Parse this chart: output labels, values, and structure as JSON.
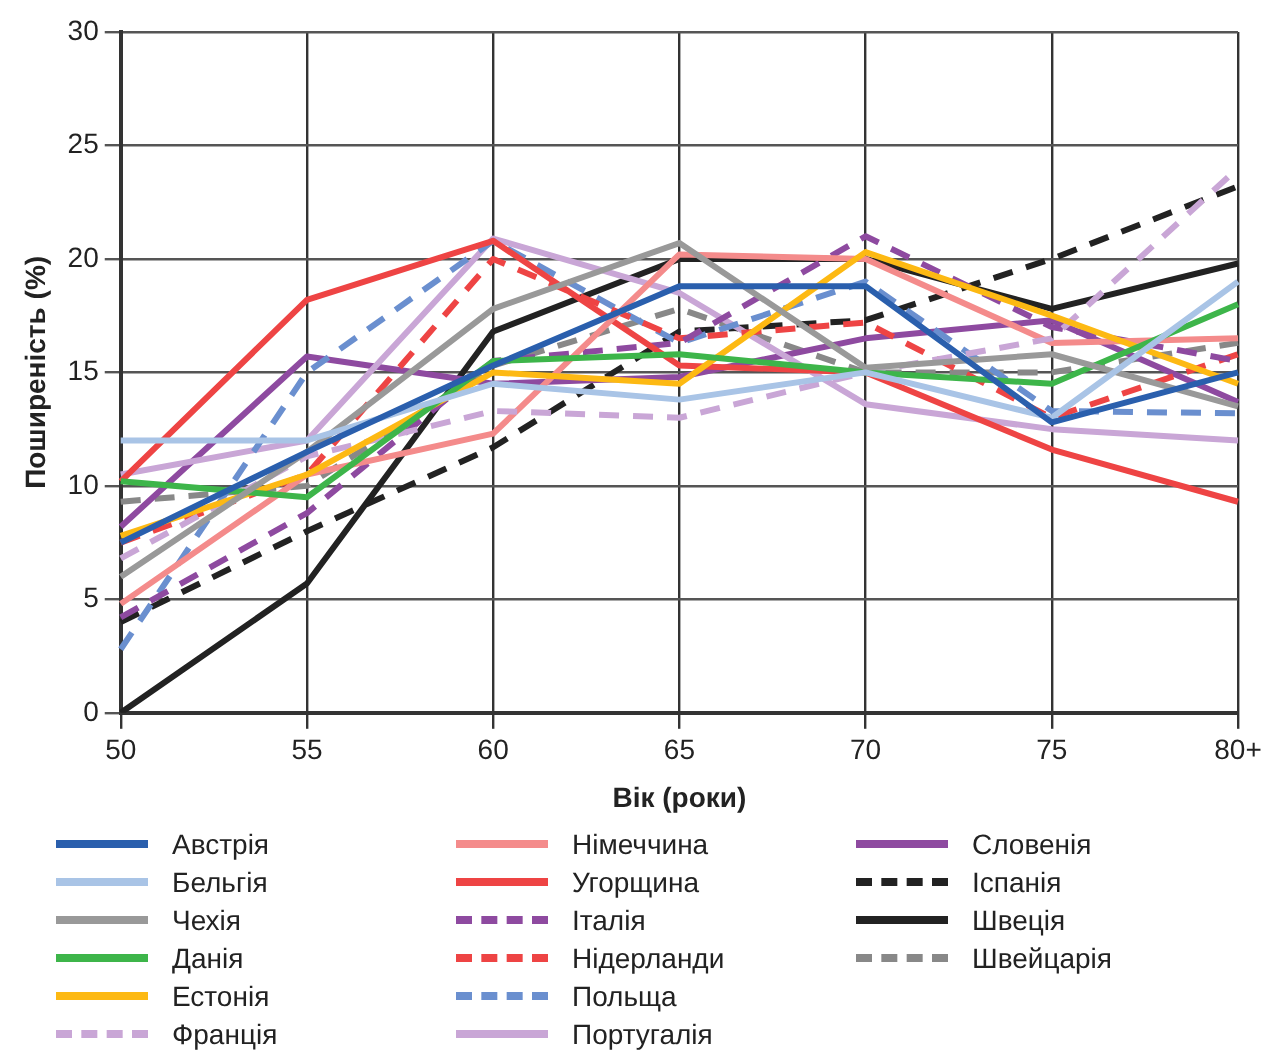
{
  "chart_data": {
    "type": "line",
    "xlabel": "Вік (роки)",
    "ylabel": "Поширеність (%)",
    "categories": [
      "50",
      "55",
      "60",
      "65",
      "70",
      "75",
      "80+"
    ],
    "ylim": [
      0,
      30
    ],
    "yticks": [
      0,
      5,
      10,
      15,
      20,
      25,
      30
    ],
    "grid": true,
    "legend": "bottom",
    "marker": "none",
    "series": [
      {
        "name": "Австрія",
        "color": "#2a5fad",
        "line_style": "solid",
        "values": [
          7.5,
          11.5,
          15.3,
          18.8,
          18.8,
          12.8,
          15.0
        ]
      },
      {
        "name": "Бельгія",
        "color": "#a9c4e6",
        "line_style": "solid",
        "values": [
          12.0,
          12.0,
          14.5,
          13.8,
          15.0,
          13.0,
          19.0
        ]
      },
      {
        "name": "Чехія",
        "color": "#999999",
        "line_style": "solid",
        "values": [
          6.0,
          11.5,
          17.8,
          20.7,
          15.2,
          15.8,
          13.5
        ]
      },
      {
        "name": "Данія",
        "color": "#3db54a",
        "line_style": "solid",
        "values": [
          10.2,
          9.5,
          15.5,
          15.8,
          15.0,
          14.5,
          18.0
        ]
      },
      {
        "name": "Естонія",
        "color": "#fdb913",
        "line_style": "solid",
        "values": [
          7.8,
          10.5,
          15.0,
          14.5,
          20.3,
          17.5,
          14.5
        ]
      },
      {
        "name": "Франція",
        "color": "#c9a6d6",
        "line_style": "dashed",
        "values": [
          6.8,
          11.3,
          13.3,
          13.0,
          15.0,
          16.5,
          24.0
        ]
      },
      {
        "name": "Німеччина",
        "color": "#f48b8b",
        "line_style": "solid",
        "values": [
          4.8,
          10.5,
          12.3,
          20.2,
          20.0,
          16.3,
          16.5
        ]
      },
      {
        "name": "Угорщина",
        "color": "#ee4444",
        "line_style": "solid",
        "values": [
          10.2,
          18.2,
          20.8,
          15.3,
          15.0,
          11.6,
          9.3
        ]
      },
      {
        "name": "Італія",
        "color": "#8e4aa0",
        "line_style": "dashed",
        "values": [
          4.2,
          8.8,
          15.5,
          16.3,
          21.0,
          17.0,
          15.5
        ]
      },
      {
        "name": "Нідерланди",
        "color": "#ee4444",
        "line_style": "dashed",
        "values": [
          7.5,
          10.5,
          20.0,
          16.5,
          17.2,
          13.0,
          15.8
        ]
      },
      {
        "name": "Польща",
        "color": "#6a8fcf",
        "line_style": "dashed",
        "values": [
          2.8,
          15.0,
          20.8,
          16.3,
          19.0,
          13.3,
          13.2
        ]
      },
      {
        "name": "Португалія",
        "color": "#c9a6d6",
        "line_style": "solid",
        "values": [
          10.5,
          12.0,
          20.9,
          18.5,
          13.6,
          12.5,
          12.0
        ]
      },
      {
        "name": "Словенія",
        "color": "#8e4aa0",
        "line_style": "solid",
        "values": [
          8.2,
          15.7,
          14.5,
          14.8,
          16.5,
          17.3,
          13.7
        ]
      },
      {
        "name": "Іспанія",
        "color": "#222222",
        "line_style": "dashed",
        "values": [
          4.0,
          8.0,
          11.7,
          16.8,
          17.3,
          20.0,
          23.2
        ]
      },
      {
        "name": "Швеція",
        "color": "#222222",
        "line_style": "solid",
        "values": [
          0.0,
          5.7,
          16.8,
          20.0,
          20.0,
          17.8,
          19.8
        ]
      },
      {
        "name": "Швейцарія",
        "color": "#888888",
        "line_style": "dashed",
        "values": [
          9.3,
          10.0,
          15.3,
          17.8,
          15.0,
          15.0,
          16.3
        ]
      }
    ]
  }
}
